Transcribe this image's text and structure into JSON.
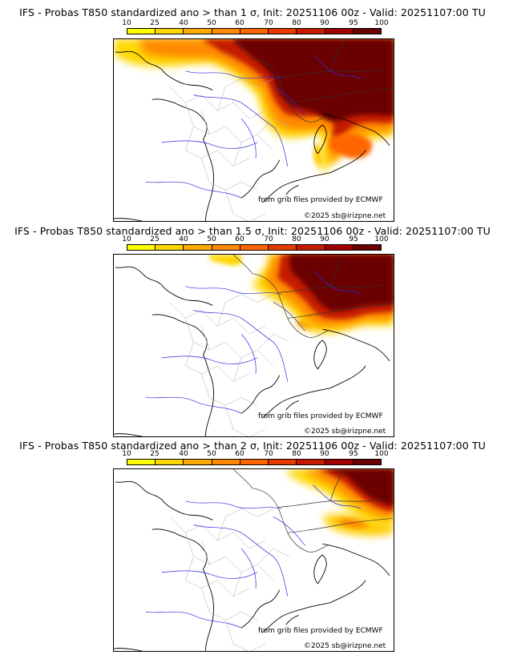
{
  "colorbar": {
    "ticks": [
      "10",
      "25",
      "40",
      "50",
      "60",
      "70",
      "80",
      "90",
      "95",
      "100"
    ],
    "colors": [
      "#ffff00",
      "#ffd700",
      "#ffaa00",
      "#ff8800",
      "#ff6600",
      "#e63a00",
      "#c41a00",
      "#a00000",
      "#6b0000"
    ]
  },
  "panels": [
    {
      "title": "IFS - Probas T850  standardized ano > than 1 σ, Init: 20251106 00z - Valid: 20251107:00 TU",
      "source_credit": "from grib files provided by ECMWF",
      "copyright": "©2025 sb@irizpne.net"
    },
    {
      "title": "IFS - Probas T850  standardized ano > than 1.5 σ, Init: 20251106 00z - Valid: 20251107:00 TU",
      "source_credit": "from grib files provided by ECMWF",
      "copyright": "©2025 sb@irizpne.net"
    },
    {
      "title": "IFS - Probas T850  standardized ano > than 2 σ, Init: 20251106 00z - Valid: 20251107:00 TU",
      "source_credit": "from grib files provided by ECMWF",
      "copyright": "©2025 sb@irizpne.net"
    }
  ]
}
